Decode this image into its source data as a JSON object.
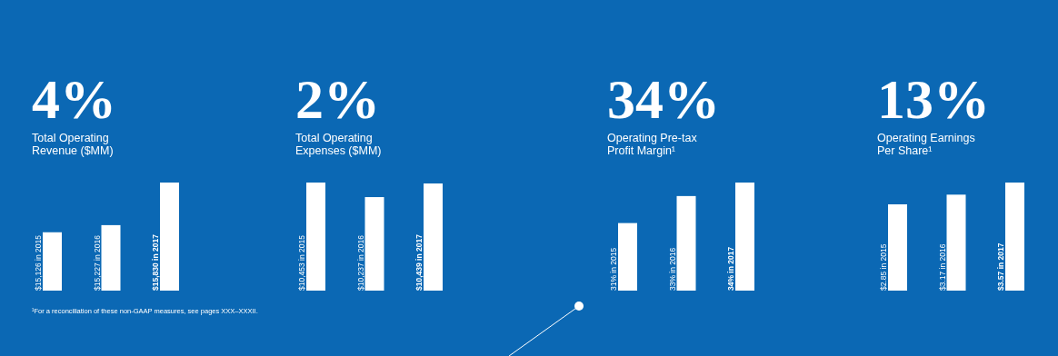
{
  "chart_data": [
    {
      "type": "bar",
      "title": "4%",
      "subtitle": "Total Operating Revenue ($MM)",
      "categories": [
        null,
        null,
        null
      ],
      "ylim": [
        14300,
        15830
      ],
      "tick_labels": false,
      "color": "#ffffff",
      "values": [
        15126,
        15227,
        15830
      ],
      "value_labels": [
        "$15,126 in 2015",
        "$15,227 in 2016",
        "$15,830 in 2017"
      ],
      "annotations": [
        "¹For a reconciliation of these non-GAAP measures, see pages XXX–XXXII."
      ]
    },
    {
      "type": "bar",
      "title": "2%",
      "subtitle": "Total Operating Expenses ($MM)",
      "categories": [
        null,
        null,
        null
      ],
      "ylim": [
        8850,
        10453
      ],
      "tick_labels": false,
      "color": "#ffffff",
      "values": [
        10453,
        10237,
        10439
      ],
      "value_labels": [
        "$10,453 in 2015",
        "$10,237 in 2016",
        "$10,439 in 2017"
      ]
    },
    {
      "type": "bar",
      "title": "34%",
      "subtitle": "Operating Pre-tax Profit Margin¹",
      "categories": [
        null,
        null,
        null
      ],
      "ylim": [
        26,
        34
      ],
      "tick_labels": false,
      "color": "#ffffff",
      "values": [
        31,
        33,
        34
      ],
      "value_labels": [
        "31% in 2015",
        "33% in 2016",
        "34% in 2017"
      ]
    },
    {
      "type": "bar",
      "title": "13%",
      "subtitle": "Operating Earnings Per Share¹",
      "categories": [
        null,
        null,
        null
      ],
      "ylim": [
        0,
        3.57
      ],
      "tick_labels": false,
      "color": "#ffffff",
      "values": [
        2.85,
        3.17,
        3.57
      ],
      "value_labels": [
        "$2.85 in 2015",
        "$3.17 in 2016",
        "$3.57 in 2017"
      ]
    }
  ]
}
